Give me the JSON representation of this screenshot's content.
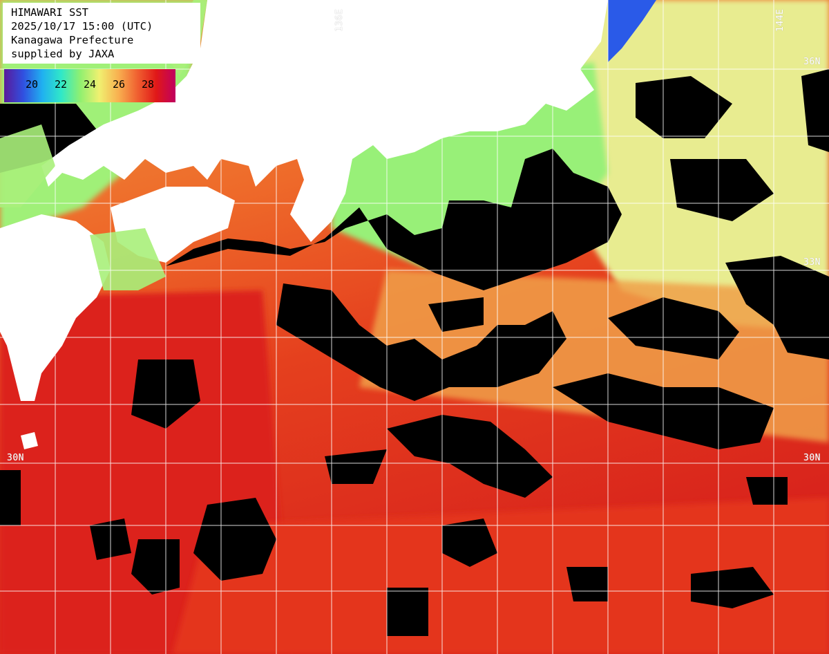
{
  "header": {
    "line1": "HIMAWARI SST",
    "line2": "2025/10/17 15:00 (UTC)",
    "line3": "Kanagawa Prefecture",
    "line4": "supplied by JAXA"
  },
  "legend": {
    "ticks": [
      "20",
      "22",
      "24",
      "26",
      "28"
    ],
    "gradient": [
      "#5a1a9a",
      "#3050e0",
      "#20b0f0",
      "#30e8c8",
      "#90f070",
      "#f0f070",
      "#f8b050",
      "#f06030",
      "#e01818",
      "#c00060"
    ]
  },
  "grid_labels": {
    "lat_36_right": "36N",
    "lat_33_right": "33N",
    "lat_30_left": "30N",
    "lat_30_right": "30N",
    "lon_136": "136E",
    "lon_144": "144E"
  },
  "colors": {
    "land": "#ffffff",
    "cloud": "#000000",
    "grid": "#ffffff",
    "sst_warm": "#e83a1c",
    "sst_hot": "#d81e1e",
    "sst_mid": "#f0a050",
    "sst_cool": "#b8f070",
    "sst_cold": "#3a5ae0"
  }
}
